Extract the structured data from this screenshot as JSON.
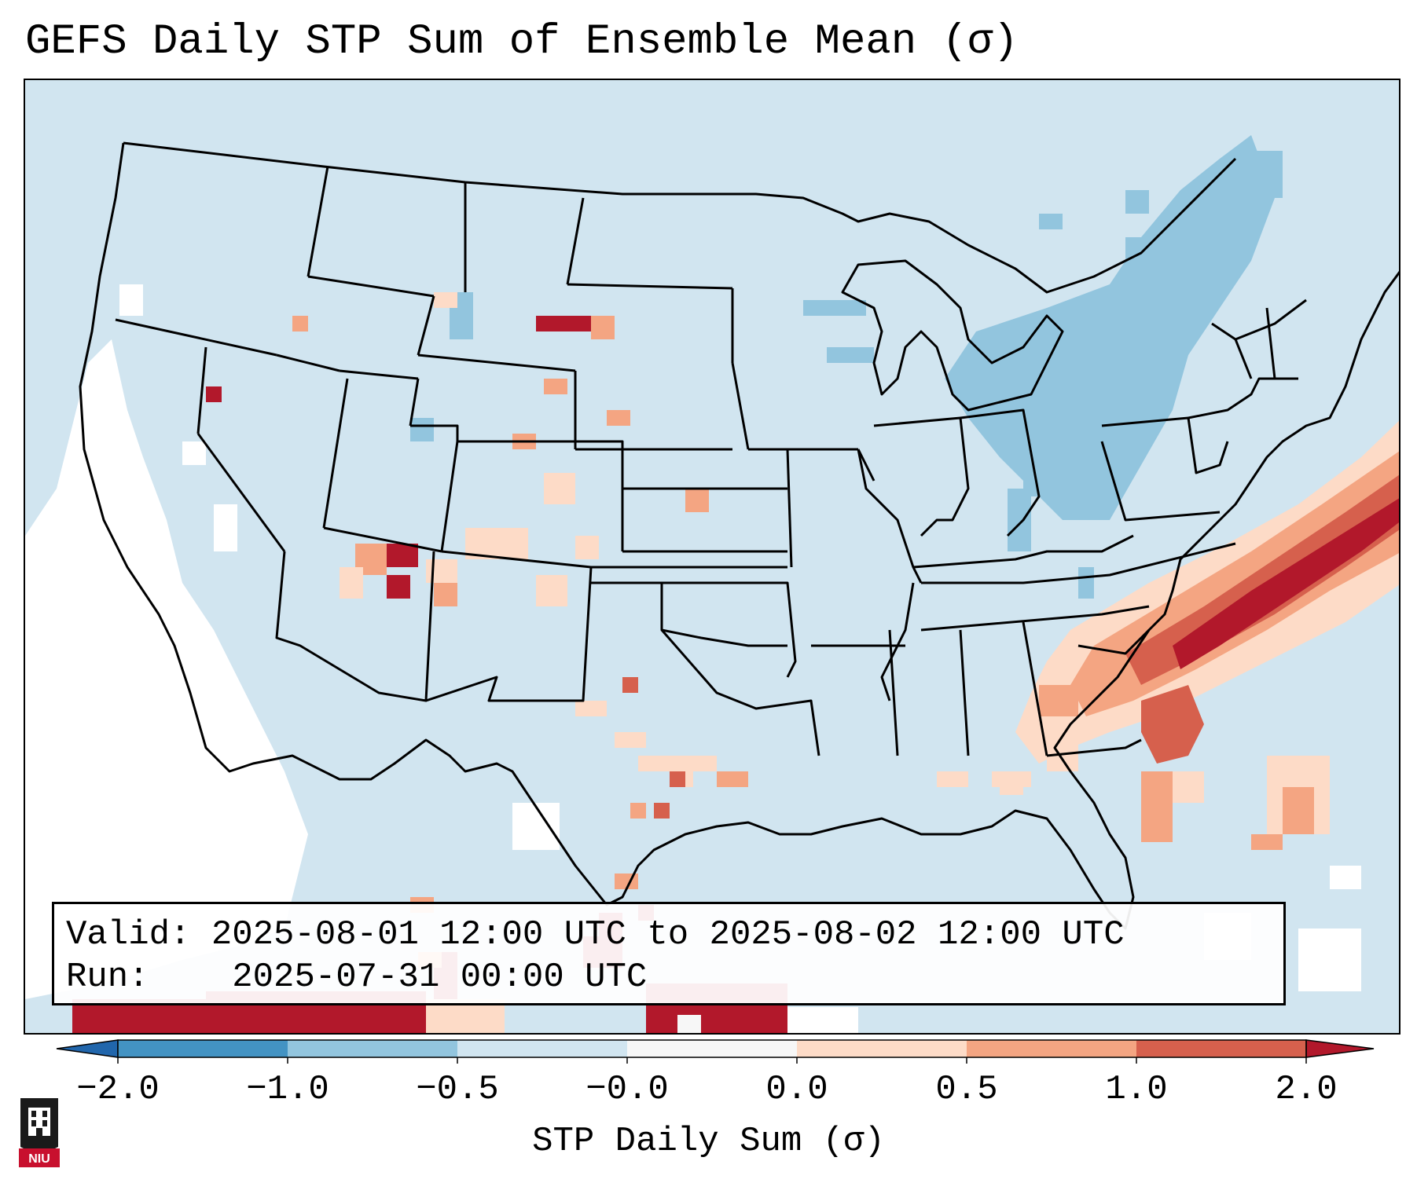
{
  "title": "GEFS Daily STP Sum of Ensemble Mean (σ)",
  "info": {
    "valid_label": "Valid:",
    "valid_value": "2025-08-01 12:00 UTC to 2025-08-02 12:00 UTC",
    "run_label": "Run:",
    "run_value": "2025-07-31 00:00 UTC"
  },
  "colorbar": {
    "label": "STP Daily Sum (σ)",
    "ticks": [
      "−2.0",
      "−1.0",
      "−0.5",
      "−0.0",
      "0.0",
      "0.5",
      "1.0",
      "2.0"
    ],
    "levels": [
      {
        "range": "< -2.0",
        "color": "#2166ac"
      },
      {
        "range": "-2.0 to -1.0",
        "color": "#4393c3"
      },
      {
        "range": "-1.0 to -0.5",
        "color": "#92c5de"
      },
      {
        "range": "-0.5 to -0.0",
        "color": "#d1e5f0"
      },
      {
        "range": "-0.0 to 0.0",
        "color": "#f7f7f7"
      },
      {
        "range": "0.0 to 0.5",
        "color": "#fddbc7"
      },
      {
        "range": "0.5 to 1.0",
        "color": "#f4a582"
      },
      {
        "range": "1.0 to 2.0",
        "color": "#d6604d"
      },
      {
        "range": "> 2.0",
        "color": "#b2182b"
      }
    ]
  },
  "map": {
    "region": "CONUS",
    "background_color": "#d1e5f0",
    "line_color": "#000000"
  },
  "logo": {
    "text": "NIU",
    "icon": "niu-logo-icon"
  }
}
